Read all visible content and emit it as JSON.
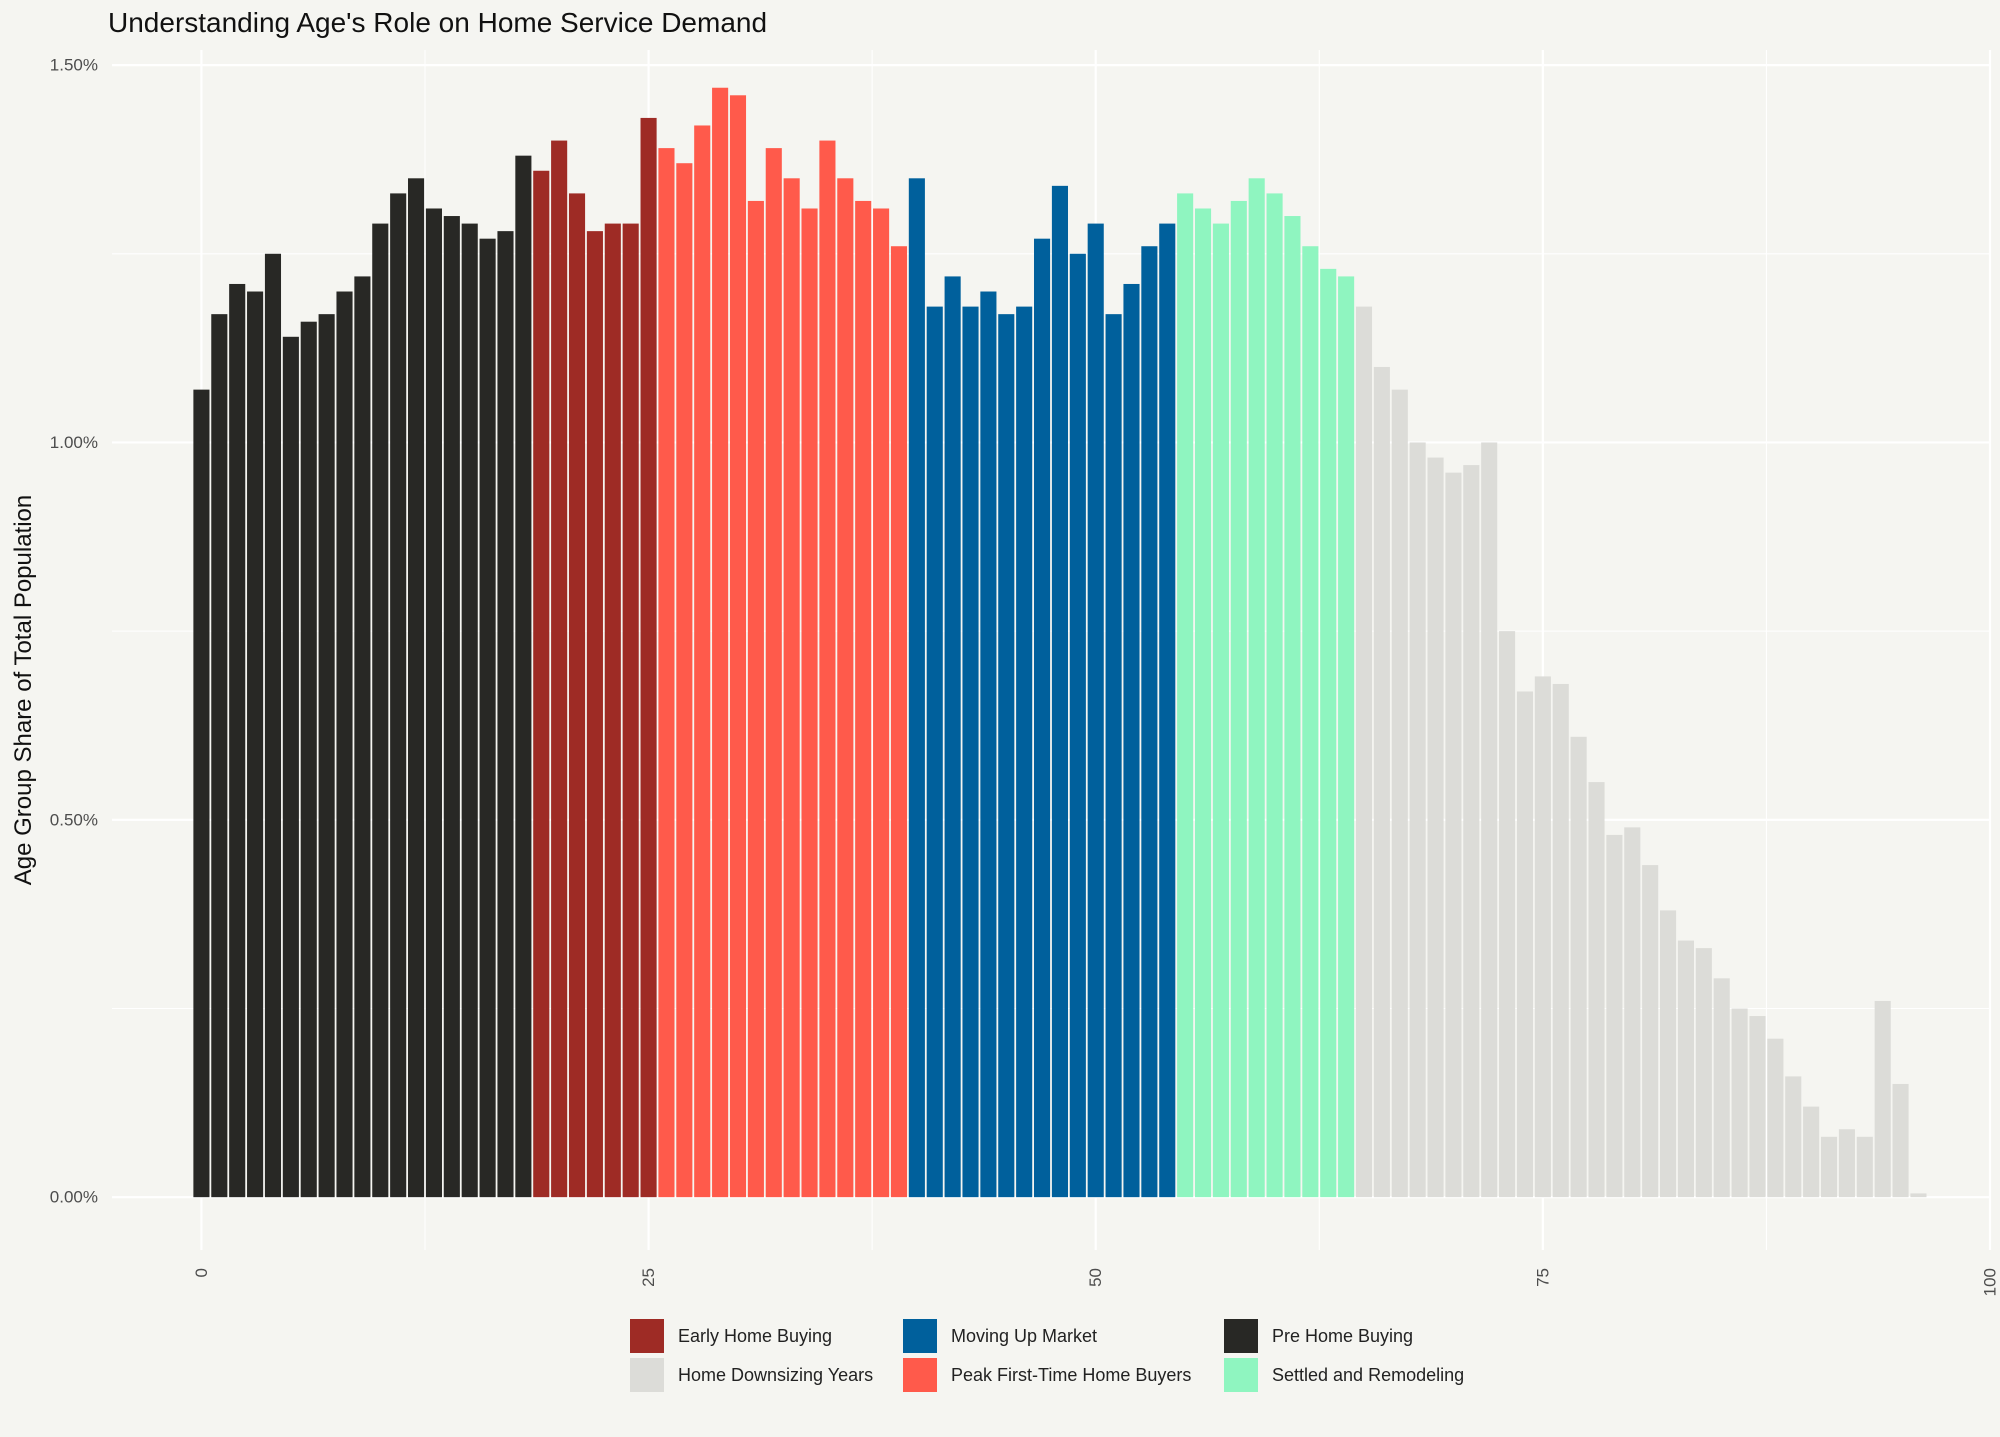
{
  "chart_data": {
    "type": "bar",
    "title": "Understanding Age's Role on Home Service Demand",
    "xlabel": "",
    "ylabel": "Age Group Share of Total Population",
    "xlim": [
      -5,
      100
    ],
    "ylim": [
      -0.07,
      1.52
    ],
    "x_ticks": [
      0,
      25,
      50,
      75,
      100
    ],
    "x_tick_labels": [
      "0",
      "25",
      "50",
      "75",
      "100"
    ],
    "y_ticks": [
      0,
      0.5,
      1.0,
      1.5
    ],
    "y_tick_labels": [
      "0.00%",
      "0.50%",
      "1.00%",
      "1.50%"
    ],
    "grid": true,
    "legend_position": "bottom",
    "x": [
      0,
      1,
      2,
      3,
      4,
      5,
      6,
      7,
      8,
      9,
      10,
      11,
      12,
      13,
      14,
      15,
      16,
      17,
      18,
      19,
      20,
      21,
      22,
      23,
      24,
      25,
      26,
      27,
      28,
      29,
      30,
      31,
      32,
      33,
      34,
      35,
      36,
      37,
      38,
      39,
      40,
      41,
      42,
      43,
      44,
      45,
      46,
      47,
      48,
      49,
      50,
      51,
      52,
      53,
      54,
      55,
      56,
      57,
      58,
      59,
      60,
      61,
      62,
      63,
      64,
      65,
      66,
      67,
      68,
      69,
      70,
      71,
      72,
      73,
      74,
      75,
      76,
      77,
      78,
      79,
      80,
      81,
      82,
      83,
      84,
      85,
      86,
      87,
      88,
      89,
      90,
      91,
      92,
      93,
      94,
      95,
      96
    ],
    "values": [
      1.07,
      1.17,
      1.21,
      1.2,
      1.25,
      1.14,
      1.16,
      1.17,
      1.2,
      1.22,
      1.29,
      1.33,
      1.35,
      1.31,
      1.3,
      1.29,
      1.27,
      1.28,
      1.38,
      1.36,
      1.4,
      1.33,
      1.28,
      1.29,
      1.29,
      1.43,
      1.39,
      1.37,
      1.42,
      1.47,
      1.46,
      1.32,
      1.39,
      1.35,
      1.31,
      1.4,
      1.35,
      1.32,
      1.31,
      1.26,
      1.35,
      1.18,
      1.22,
      1.18,
      1.2,
      1.17,
      1.18,
      1.27,
      1.34,
      1.25,
      1.29,
      1.17,
      1.21,
      1.26,
      1.29,
      1.33,
      1.31,
      1.29,
      1.32,
      1.35,
      1.33,
      1.3,
      1.26,
      1.23,
      1.22,
      1.18,
      1.1,
      1.07,
      1.0,
      0.98,
      0.96,
      0.97,
      1.0,
      0.75,
      0.67,
      0.69,
      0.68,
      0.61,
      0.55,
      0.48,
      0.49,
      0.44,
      0.38,
      0.34,
      0.33,
      0.29,
      0.25,
      0.24,
      0.21,
      0.16,
      0.12,
      0.08,
      0.09,
      0.08,
      0.26,
      0.15,
      0.005
    ],
    "groups": [
      "pre",
      "pre",
      "pre",
      "pre",
      "pre",
      "pre",
      "pre",
      "pre",
      "pre",
      "pre",
      "pre",
      "pre",
      "pre",
      "pre",
      "pre",
      "pre",
      "pre",
      "pre",
      "pre",
      "early",
      "early",
      "early",
      "early",
      "early",
      "early",
      "early",
      "peak",
      "peak",
      "peak",
      "peak",
      "peak",
      "peak",
      "peak",
      "peak",
      "peak",
      "peak",
      "peak",
      "peak",
      "peak",
      "peak",
      "moving",
      "moving",
      "moving",
      "moving",
      "moving",
      "moving",
      "moving",
      "moving",
      "moving",
      "moving",
      "moving",
      "moving",
      "moving",
      "moving",
      "moving",
      "settled",
      "settled",
      "settled",
      "settled",
      "settled",
      "settled",
      "settled",
      "settled",
      "settled",
      "settled",
      "down",
      "down",
      "down",
      "down",
      "down",
      "down",
      "down",
      "down",
      "down",
      "down",
      "down",
      "down",
      "down",
      "down",
      "down",
      "down",
      "down",
      "down",
      "down",
      "down",
      "down",
      "down",
      "down",
      "down",
      "down",
      "down",
      "down",
      "down",
      "down",
      "down",
      "down",
      "down"
    ],
    "series": [
      {
        "key": "early",
        "name": "Early Home Buying",
        "color": "#9e2b25"
      },
      {
        "key": "down",
        "name": "Home Downsizing Years",
        "color": "#dcdcd8"
      },
      {
        "key": "moving",
        "name": "Moving Up Market",
        "color": "#00609c"
      },
      {
        "key": "peak",
        "name": "Peak First-Time Home Buyers",
        "color": "#ff5a4b"
      },
      {
        "key": "pre",
        "name": "Pre Home Buying",
        "color": "#282825"
      },
      {
        "key": "settled",
        "name": "Settled and Remodeling",
        "color": "#8ff5c0"
      }
    ]
  }
}
